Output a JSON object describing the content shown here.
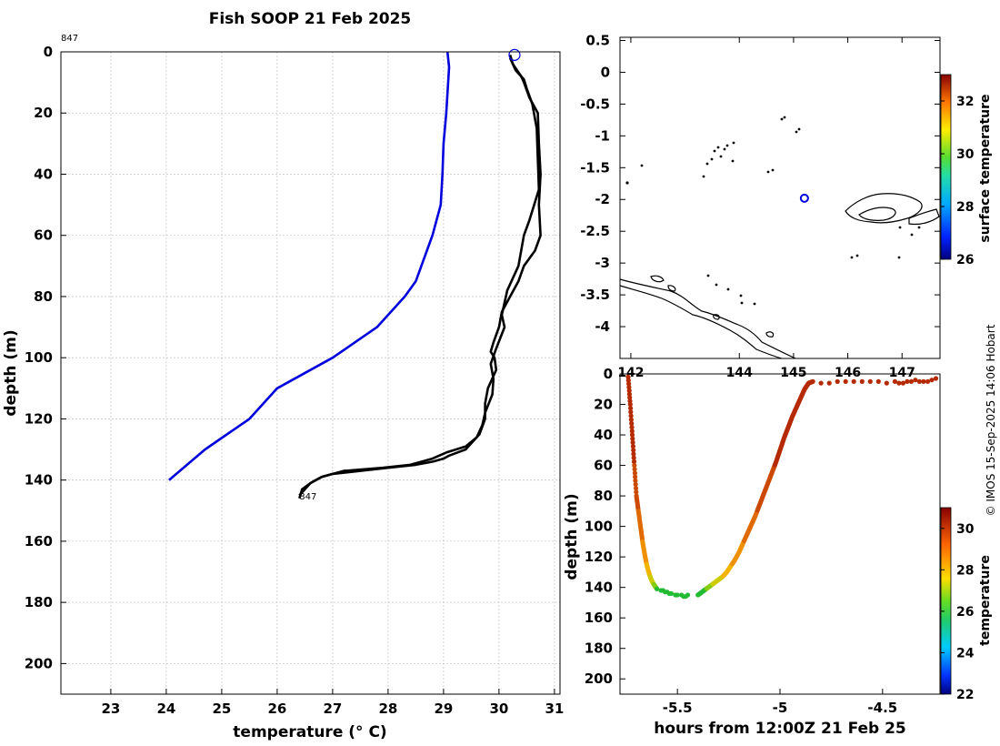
{
  "credit": "© IMOS 15-Sep-2025 14:06 Hobart",
  "chart_data": [
    {
      "id": "profile",
      "type": "line",
      "title": "Fish SOOP 21 Feb 2025",
      "xlabel": "temperature (° C)",
      "ylabel": "depth (m)",
      "xlim": [
        22.1,
        31.1
      ],
      "ylim": [
        210,
        0
      ],
      "xticks": [
        23,
        24,
        25,
        26,
        27,
        28,
        29,
        30,
        31
      ],
      "yticks": [
        0,
        20,
        40,
        60,
        80,
        100,
        120,
        140,
        160,
        180,
        200
      ],
      "grid": true,
      "annotations": [
        {
          "text": "847",
          "x": 22.1,
          "y": -3
        },
        {
          "text": "847",
          "x": 26.4,
          "y": 147
        }
      ],
      "series": [
        {
          "color": "#0000dd",
          "x": [
            29.07,
            29.1,
            29.05,
            29.0,
            28.98,
            28.95,
            28.8,
            28.7,
            28.6,
            28.5,
            28.3,
            27.8,
            27.0,
            26.0,
            25.5,
            24.7,
            24.05
          ],
          "y": [
            0,
            5,
            20,
            30,
            40,
            50,
            60,
            65,
            70,
            75,
            80,
            90,
            100,
            110,
            120,
            130,
            140
          ]
        },
        {
          "color": "#000000",
          "x": [
            30.2,
            30.25,
            30.4,
            30.45,
            30.55,
            30.7,
            30.72,
            30.75,
            30.72,
            30.75,
            30.65,
            30.45,
            30.35,
            30.2,
            30.05,
            30.0,
            29.9,
            29.85,
            29.92,
            29.95,
            29.8,
            29.75,
            29.75,
            29.65,
            29.5,
            29.4,
            29.1,
            29.0,
            28.8,
            28.5,
            28.0,
            27.5,
            27.0,
            26.8,
            26.6,
            26.45,
            26.4
          ],
          "y": [
            1,
            4,
            8,
            10,
            15,
            20,
            30,
            40,
            50,
            60,
            65,
            70,
            75,
            80,
            85,
            90,
            95,
            98,
            100,
            104,
            110,
            115,
            120,
            125,
            128,
            130,
            132,
            133,
            134,
            135,
            136,
            137,
            138,
            139,
            141,
            143,
            146
          ]
        },
        {
          "color": "#000000",
          "x": [
            30.2,
            30.3,
            30.45,
            30.5,
            30.6,
            30.68,
            30.7,
            30.72,
            30.55,
            30.45,
            30.35,
            30.15,
            30.05,
            30.1,
            29.95,
            29.85,
            29.9,
            29.88,
            29.75,
            29.7,
            29.6,
            29.4,
            29.05,
            28.8,
            28.4,
            27.9,
            27.2,
            26.8,
            26.6,
            26.4
          ],
          "y": [
            2,
            6,
            9,
            12,
            17,
            25,
            35,
            45,
            55,
            60,
            70,
            78,
            86,
            90,
            97,
            102,
            107,
            112,
            118,
            122,
            126,
            129,
            131,
            133,
            135,
            136,
            137,
            139,
            141,
            145
          ]
        }
      ],
      "markers": [
        {
          "shape": "circle",
          "color": "#0000dd",
          "x": 30.28,
          "y": 1
        }
      ]
    },
    {
      "id": "map",
      "type": "scatter",
      "xlim": [
        141.8,
        147.7
      ],
      "ylim": [
        -4.5,
        0.55
      ],
      "xticks": [
        142,
        144,
        145,
        146,
        147
      ],
      "yticks": [
        0.5,
        0,
        -0.5,
        -1,
        -1.5,
        -2,
        -2.5,
        -3,
        -3.5,
        -4
      ],
      "ytick_labels": [
        "0.5",
        "0",
        "-0.5",
        "-1",
        "-1.5",
        "-2",
        "-2.5",
        "-3",
        "-3.5",
        "-4"
      ],
      "colorbar": {
        "label": "surface temperature",
        "range": [
          26,
          33
        ],
        "ticks": [
          26,
          28,
          30,
          32
        ]
      },
      "markers": [
        {
          "shape": "circle",
          "color": "#0000dd",
          "x": 145.2,
          "y": -1.98
        }
      ]
    },
    {
      "id": "section",
      "type": "scatter",
      "xlabel": "hours from 12:00Z 21 Feb 25",
      "ylabel": "depth (m)",
      "xlim": [
        -5.78,
        -4.22
      ],
      "ylim": [
        210,
        0
      ],
      "xticks": [
        -5.5,
        -5,
        -4.5
      ],
      "xtick_labels": [
        "-5.5",
        "-5",
        "-4.5"
      ],
      "yticks": [
        0,
        20,
        40,
        60,
        80,
        100,
        120,
        140,
        160,
        180,
        200
      ],
      "colorbar": {
        "label": "temperature",
        "range": [
          22,
          31
        ],
        "ticks": [
          22,
          24,
          26,
          28,
          30
        ]
      },
      "down_cast": {
        "x": [
          -5.74,
          -5.73,
          -5.72,
          -5.71,
          -5.7,
          -5.69,
          -5.68,
          -5.67,
          -5.66,
          -5.65,
          -5.64,
          -5.63,
          -5.62,
          -5.61,
          -5.6
        ],
        "y": [
          2,
          20,
          40,
          60,
          80,
          90,
          100,
          110,
          118,
          125,
          130,
          134,
          137,
          139,
          141
        ]
      },
      "bottom_points": {
        "x": [
          -5.58,
          -5.57,
          -5.56,
          -5.55,
          -5.54,
          -5.53,
          -5.51,
          -5.5,
          -5.48,
          -5.47,
          -5.46,
          -5.45
        ],
        "y": [
          142,
          142,
          143,
          143,
          144,
          144,
          145,
          145,
          145,
          146,
          146,
          145
        ]
      },
      "up_cast": {
        "x": [
          -5.4,
          -5.38,
          -5.36,
          -5.34,
          -5.32,
          -5.3,
          -5.28,
          -5.26,
          -5.24,
          -5.22,
          -5.2,
          -5.18,
          -5.16,
          -5.14,
          -5.12,
          -5.1,
          -5.08,
          -5.06,
          -5.04,
          -5.02,
          -5.0,
          -4.98,
          -4.96,
          -4.94,
          -4.92,
          -4.9,
          -4.88,
          -4.86,
          -4.84
        ],
        "y": [
          145,
          143,
          141,
          139,
          137,
          135,
          133,
          130,
          126,
          122,
          117,
          111,
          105,
          99,
          93,
          86,
          79,
          72,
          65,
          58,
          50,
          42,
          35,
          28,
          22,
          16,
          10,
          6,
          5
        ]
      },
      "surface_points": {
        "x": [
          -4.8,
          -4.76,
          -4.72,
          -4.68,
          -4.64,
          -4.6,
          -4.56,
          -4.52,
          -4.48,
          -4.44,
          -4.42,
          -4.4,
          -4.38,
          -4.36,
          -4.34,
          -4.32,
          -4.3,
          -4.28,
          -4.26,
          -4.24
        ],
        "y": [
          6,
          6,
          5,
          5,
          5,
          5,
          5,
          5,
          6,
          5,
          6,
          6,
          5,
          5,
          4,
          5,
          5,
          5,
          4,
          3
        ]
      }
    }
  ]
}
